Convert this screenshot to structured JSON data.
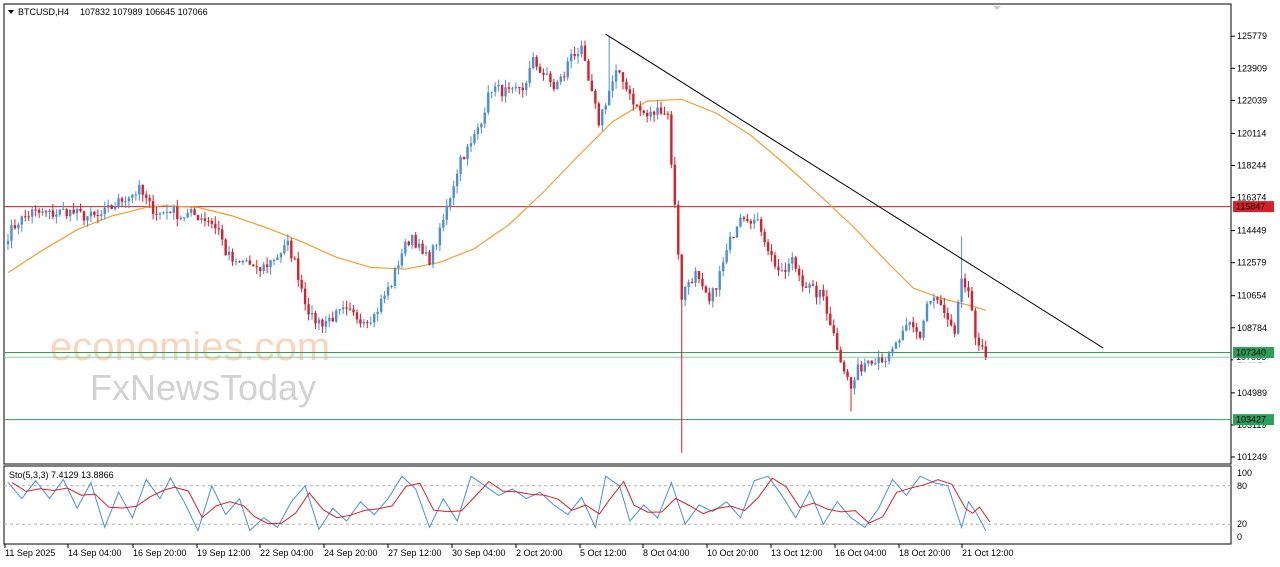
{
  "header": {
    "symbol": "BTCUSD,H4",
    "ohlc": "107832 107989 106645 107066"
  },
  "indicator": {
    "label": "Sto(5,3,3) 7.4129 13.8866",
    "levels": [
      80,
      20
    ],
    "scale_labels": [
      "100",
      "80",
      "20",
      "0"
    ]
  },
  "watermark": {
    "line1": "economies.com",
    "line2": "FxNewsToday"
  },
  "colors": {
    "bull": "#4a8fd8",
    "bear": "#d9202a",
    "ma": "#f0a030",
    "trendline": "#000000",
    "resistance": "#d9202a",
    "support": "#2aa05a",
    "stoch_main": "#4a8fd8",
    "stoch_signal": "#d9202a"
  },
  "chart_data": {
    "type": "candlestick",
    "y_ticks": [
      "125779",
      "123909",
      "122039",
      "120114",
      "118244",
      "116374",
      "114449",
      "112579",
      "110654",
      "108784",
      "106914",
      "104989",
      "103119",
      "101249"
    ],
    "x_ticks": [
      "11 Sep 2025",
      "14 Sep 04:00",
      "16 Sep 20:00",
      "19 Sep 12:00",
      "22 Sep 04:00",
      "24 Sep 20:00",
      "27 Sep 12:00",
      "30 Sep 04:00",
      "2 Oct 20:00",
      "5 Oct 12:00",
      "8 Oct 04:00",
      "10 Oct 20:00",
      "13 Oct 12:00",
      "16 Oct 04:00",
      "18 Oct 20:00",
      "21 Oct 12:00"
    ],
    "levels": [
      {
        "label": "115847",
        "value": 115847,
        "kind": "resistance"
      },
      {
        "label": "107340",
        "value": 107340,
        "kind": "support"
      },
      {
        "label": "103427",
        "value": 103427,
        "kind": "support"
      }
    ],
    "current_price": {
      "label": "107066",
      "value": 107066
    },
    "ylim": [
      100900,
      127600
    ],
    "anchors": [
      [
        0,
        114200
      ],
      [
        3,
        115000
      ],
      [
        7,
        115500
      ],
      [
        12,
        115400
      ],
      [
        17,
        115600
      ],
      [
        22,
        115300
      ],
      [
        26,
        115200
      ],
      [
        30,
        115800
      ],
      [
        34,
        116400
      ],
      [
        38,
        116800
      ],
      [
        41,
        115900
      ],
      [
        44,
        115400
      ],
      [
        47,
        115700
      ],
      [
        50,
        115300
      ],
      [
        53,
        115400
      ],
      [
        55,
        115300
      ],
      [
        58,
        115100
      ],
      [
        61,
        114500
      ],
      [
        63,
        113200
      ],
      [
        66,
        112400
      ],
      [
        69,
        112700
      ],
      [
        72,
        112000
      ],
      [
        75,
        112500
      ],
      [
        78,
        113000
      ],
      [
        81,
        113600
      ],
      [
        83,
        112600
      ],
      [
        86,
        110400
      ],
      [
        88,
        109300
      ],
      [
        91,
        109100
      ],
      [
        94,
        109400
      ],
      [
        97,
        109700
      ],
      [
        100,
        109500
      ],
      [
        103,
        109300
      ],
      [
        106,
        109500
      ],
      [
        108,
        110300
      ],
      [
        111,
        111400
      ],
      [
        114,
        113200
      ],
      [
        117,
        114200
      ],
      [
        120,
        113000
      ],
      [
        122,
        112800
      ],
      [
        125,
        114300
      ],
      [
        128,
        116500
      ],
      [
        131,
        118700
      ],
      [
        134,
        119400
      ],
      [
        137,
        121000
      ],
      [
        140,
        122800
      ],
      [
        143,
        122600
      ],
      [
        146,
        122400
      ],
      [
        149,
        122700
      ],
      [
        152,
        124300
      ],
      [
        155,
        123600
      ],
      [
        158,
        122800
      ],
      [
        161,
        123500
      ],
      [
        163,
        124800
      ],
      [
        166,
        124900
      ],
      [
        168,
        123100
      ],
      [
        171,
        120800
      ],
      [
        174,
        122600
      ],
      [
        176,
        123600
      ],
      [
        179,
        122900
      ],
      [
        182,
        121600
      ],
      [
        185,
        121100
      ],
      [
        187,
        121300
      ],
      [
        189,
        121600
      ],
      [
        191,
        121200
      ],
      [
        193,
        115800
      ],
      [
        195,
        110600
      ],
      [
        197,
        111500
      ],
      [
        199,
        111900
      ],
      [
        201,
        110900
      ],
      [
        203,
        110200
      ],
      [
        206,
        111900
      ],
      [
        209,
        113800
      ],
      [
        212,
        115500
      ],
      [
        215,
        115200
      ],
      [
        218,
        114600
      ],
      [
        221,
        112900
      ],
      [
        224,
        111800
      ],
      [
        227,
        112700
      ],
      [
        230,
        111500
      ],
      [
        233,
        110900
      ],
      [
        236,
        110600
      ],
      [
        239,
        108400
      ],
      [
        242,
        106400
      ],
      [
        244,
        105200
      ],
      [
        246,
        106300
      ],
      [
        249,
        107000
      ],
      [
        252,
        107100
      ],
      [
        255,
        107000
      ],
      [
        258,
        108100
      ],
      [
        261,
        108900
      ],
      [
        264,
        108300
      ],
      [
        266,
        110200
      ],
      [
        268,
        110500
      ],
      [
        270,
        110000
      ],
      [
        272,
        109100
      ],
      [
        274,
        108200
      ],
      [
        276,
        111700
      ],
      [
        278,
        110600
      ],
      [
        280,
        108300
      ],
      [
        282,
        107800
      ],
      [
        283,
        107066
      ]
    ],
    "moving_average": [
      [
        0,
        112000
      ],
      [
        10,
        113300
      ],
      [
        20,
        114500
      ],
      [
        30,
        115300
      ],
      [
        40,
        115800
      ],
      [
        45,
        115900
      ],
      [
        55,
        115800
      ],
      [
        65,
        115300
      ],
      [
        75,
        114600
      ],
      [
        85,
        113800
      ],
      [
        95,
        112900
      ],
      [
        105,
        112300
      ],
      [
        115,
        112200
      ],
      [
        125,
        112600
      ],
      [
        135,
        113400
      ],
      [
        145,
        114800
      ],
      [
        155,
        116700
      ],
      [
        165,
        118800
      ],
      [
        175,
        120800
      ],
      [
        185,
        122000
      ],
      [
        195,
        122100
      ],
      [
        205,
        121300
      ],
      [
        215,
        120000
      ],
      [
        225,
        118300
      ],
      [
        235,
        116500
      ],
      [
        245,
        114600
      ],
      [
        255,
        112500
      ],
      [
        262,
        111100
      ],
      [
        270,
        110500
      ],
      [
        280,
        110000
      ],
      [
        283,
        109800
      ]
    ],
    "trendline": [
      [
        173,
        125900
      ],
      [
        317,
        107600
      ]
    ],
    "stochastic": {
      "range": [
        0,
        100
      ],
      "main_points": [
        [
          0,
          85
        ],
        [
          4,
          60
        ],
        [
          8,
          88
        ],
        [
          12,
          60
        ],
        [
          16,
          90
        ],
        [
          20,
          45
        ],
        [
          24,
          85
        ],
        [
          28,
          15
        ],
        [
          32,
          70
        ],
        [
          36,
          30
        ],
        [
          40,
          90
        ],
        [
          44,
          60
        ],
        [
          47,
          92
        ],
        [
          51,
          55
        ],
        [
          55,
          10
        ],
        [
          59,
          80
        ],
        [
          63,
          35
        ],
        [
          67,
          60
        ],
        [
          70,
          10
        ],
        [
          74,
          30
        ],
        [
          78,
          15
        ],
        [
          82,
          55
        ],
        [
          86,
          80
        ],
        [
          90,
          12
        ],
        [
          94,
          45
        ],
        [
          98,
          25
        ],
        [
          102,
          55
        ],
        [
          106,
          35
        ],
        [
          110,
          60
        ],
        [
          114,
          95
        ],
        [
          118,
          75
        ],
        [
          122,
          15
        ],
        [
          126,
          60
        ],
        [
          130,
          25
        ],
        [
          134,
          95
        ],
        [
          138,
          80
        ],
        [
          142,
          65
        ],
        [
          146,
          75
        ],
        [
          150,
          60
        ],
        [
          154,
          70
        ],
        [
          158,
          50
        ],
        [
          162,
          35
        ],
        [
          166,
          62
        ],
        [
          170,
          15
        ],
        [
          173,
          95
        ],
        [
          177,
          80
        ],
        [
          180,
          25
        ],
        [
          184,
          50
        ],
        [
          188,
          30
        ],
        [
          192,
          85
        ],
        [
          196,
          20
        ],
        [
          200,
          50
        ],
        [
          204,
          40
        ],
        [
          208,
          55
        ],
        [
          212,
          30
        ],
        [
          216,
          88
        ],
        [
          220,
          95
        ],
        [
          224,
          65
        ],
        [
          228,
          30
        ],
        [
          232,
          72
        ],
        [
          236,
          20
        ],
        [
          240,
          55
        ],
        [
          244,
          30
        ],
        [
          248,
          15
        ],
        [
          252,
          45
        ],
        [
          256,
          90
        ],
        [
          260,
          65
        ],
        [
          264,
          95
        ],
        [
          268,
          85
        ],
        [
          272,
          80
        ],
        [
          276,
          15
        ],
        [
          278,
          55
        ],
        [
          280,
          40
        ],
        [
          283,
          10
        ]
      ],
      "main": 7.4129,
      "signal": 13.8866
    }
  }
}
